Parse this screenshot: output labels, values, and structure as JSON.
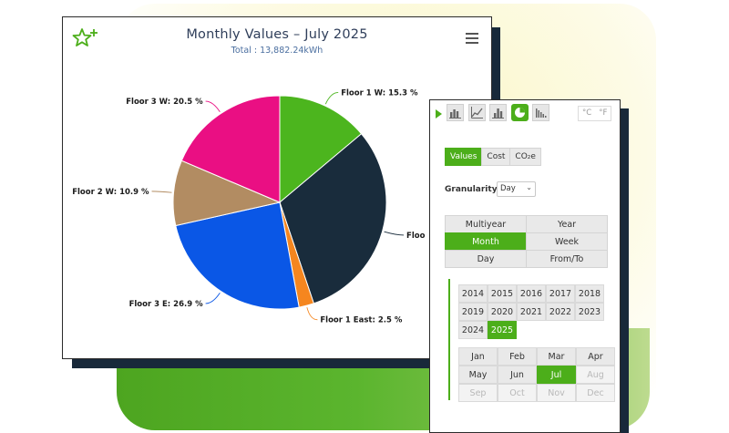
{
  "chart": {
    "title": "Monthly Values – July 2025",
    "subtitle": "Total : 13,882.24kWh"
  },
  "chart_data": {
    "type": "pie",
    "title": "Monthly Values – July 2025",
    "subtitle": "Total : 13,882.24kWh",
    "slices": [
      {
        "label": "Floor 1 W: 15.3 %",
        "value": 15.3,
        "color": "#4cb51e"
      },
      {
        "label": "Floo",
        "value": 34.1,
        "color": "#192c3c"
      },
      {
        "label": "Floor 1 East: 2.5 %",
        "value": 2.5,
        "color": "#f5861f"
      },
      {
        "label": "Floor 3 E: 26.9 %",
        "value": 26.9,
        "color": "#0a57e6"
      },
      {
        "label": "Floor 2 W: 10.9 %",
        "value": 10.9,
        "color": "#b28c62"
      },
      {
        "label": "Floor 3 W: 20.5 %",
        "value": 20.5,
        "color": "#ea0f83"
      }
    ]
  },
  "panel": {
    "units": [
      "°C",
      "°F"
    ],
    "value_types": [
      "Values",
      "Cost",
      "CO₂e"
    ],
    "granularity_label": "Granularity",
    "granularity_value": "Day",
    "periods": [
      [
        "Multiyear",
        "Year"
      ],
      [
        "Month",
        "Week"
      ],
      [
        "Day",
        "From/To"
      ]
    ],
    "selected_period": "Month",
    "years": [
      [
        "2014",
        "2015",
        "2016",
        "2017",
        "2018"
      ],
      [
        "2019",
        "2020",
        "2021",
        "2022",
        "2023"
      ],
      [
        "2024",
        "2025"
      ]
    ],
    "selected_year": "2025",
    "months": [
      [
        "Jan",
        "Feb",
        "Mar",
        "Apr"
      ],
      [
        "May",
        "Jun",
        "Jul",
        "Aug"
      ],
      [
        "Sep",
        "Oct",
        "Nov",
        "Dec"
      ]
    ],
    "selected_month": "Jul",
    "disabled_months": [
      "Aug",
      "Sep",
      "Oct",
      "Nov",
      "Dec"
    ]
  },
  "colors": {
    "accent": "#4cae1a",
    "dark": "#18293a"
  }
}
